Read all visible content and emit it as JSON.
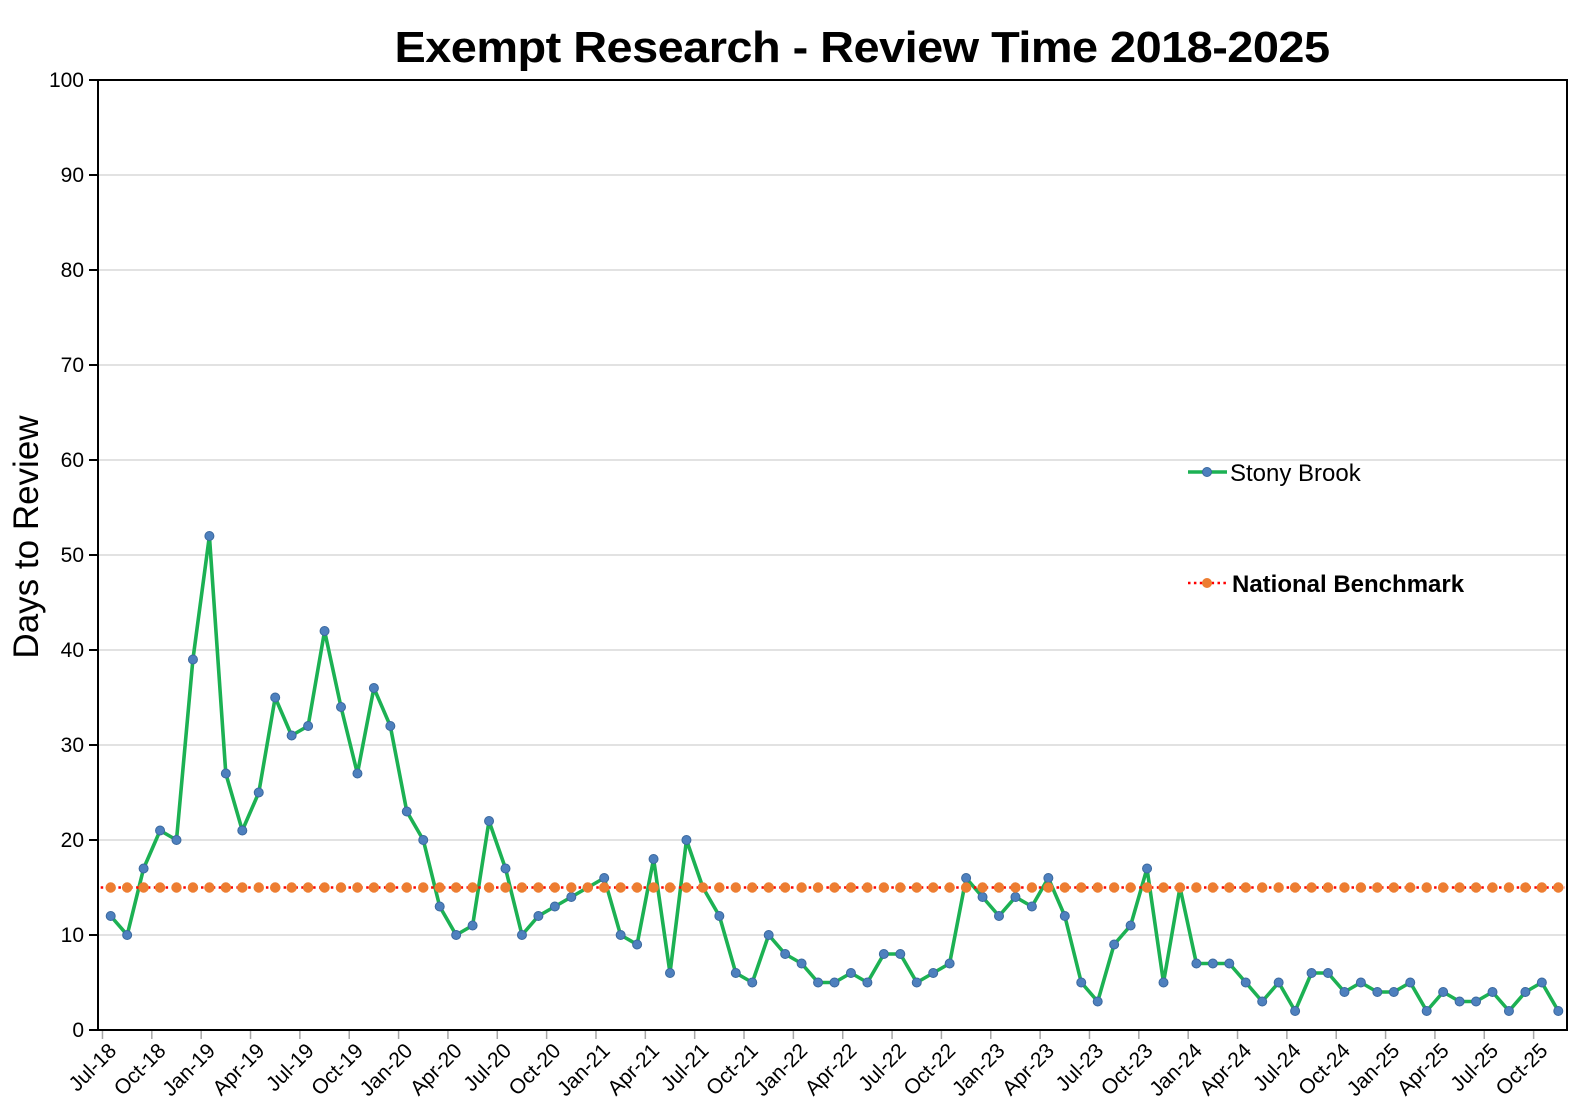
{
  "title": "Exempt Research - Review Time 2018-2025",
  "y_axis": {
    "label": "Days to Review",
    "min": 0,
    "max": 100,
    "tick_step": 10,
    "tick_labels": [
      "0",
      "10",
      "20",
      "30",
      "40",
      "50",
      "60",
      "70",
      "80",
      "90",
      "100"
    ]
  },
  "x_axis": {
    "tick_labels": [
      "Jul-18",
      "Oct-18",
      "Jan-19",
      "Apr-19",
      "Jul-19",
      "Oct-19",
      "Jan-20",
      "Apr-20",
      "Jul-20",
      "Oct-20",
      "Jan-21",
      "Apr-21",
      "Jul-21",
      "Oct-21",
      "Jan-22",
      "Apr-22",
      "Jul-22",
      "Oct-22",
      "Jan-23",
      "Apr-23",
      "Jul-23",
      "Oct-23",
      "Jan-24",
      "Apr-24",
      "Jul-24",
      "Oct-24",
      "Jan-25",
      "Apr-25",
      "Jul-25",
      "Oct-25"
    ],
    "label_every_months": 3
  },
  "legend": {
    "items": [
      {
        "label": "Stony Brook",
        "bold": false
      },
      {
        "label": "National Benchmark",
        "bold": true
      }
    ]
  },
  "colors": {
    "stony_brook_line": "#1CB153",
    "stony_brook_marker": "#4E80BE",
    "stony_brook_marker_edge": "#3A689E",
    "benchmark_line": "#FF0000",
    "benchmark_marker": "#ED7D31",
    "gridline": "#D9D9D9",
    "axis": "#000000",
    "x_tick": "#A6A6A6"
  },
  "chart_data": {
    "type": "line",
    "title": "Exempt Research - Review Time 2018-2025",
    "xlabel": "",
    "ylabel": "Days to Review",
    "ylim": [
      0,
      100
    ],
    "grid": "horizontal",
    "legend_position": "right-inside",
    "x": [
      "Jul-18",
      "Aug-18",
      "Sep-18",
      "Oct-18",
      "Nov-18",
      "Dec-18",
      "Jan-19",
      "Feb-19",
      "Mar-19",
      "Apr-19",
      "May-19",
      "Jun-19",
      "Jul-19",
      "Aug-19",
      "Sep-19",
      "Oct-19",
      "Nov-19",
      "Dec-19",
      "Jan-20",
      "Feb-20",
      "Mar-20",
      "Apr-20",
      "May-20",
      "Jun-20",
      "Jul-20",
      "Aug-20",
      "Sep-20",
      "Oct-20",
      "Nov-20",
      "Dec-20",
      "Jan-21",
      "Feb-21",
      "Mar-21",
      "Apr-21",
      "May-21",
      "Jun-21",
      "Jul-21",
      "Aug-21",
      "Sep-21",
      "Oct-21",
      "Nov-21",
      "Dec-21",
      "Jan-22",
      "Feb-22",
      "Mar-22",
      "Apr-22",
      "May-22",
      "Jun-22",
      "Jul-22",
      "Aug-22",
      "Sep-22",
      "Oct-22",
      "Nov-22",
      "Dec-22",
      "Jan-23",
      "Feb-23",
      "Mar-23",
      "Apr-23",
      "May-23",
      "Jun-23",
      "Jul-23",
      "Aug-23",
      "Sep-23",
      "Oct-23",
      "Nov-23",
      "Dec-23",
      "Jan-24",
      "Feb-24",
      "Mar-24",
      "Apr-24",
      "May-24",
      "Jun-24",
      "Jul-24",
      "Aug-24",
      "Sep-24",
      "Oct-24",
      "Nov-24",
      "Dec-24",
      "Jan-25",
      "Feb-25",
      "Mar-25",
      "Apr-25",
      "May-25",
      "Jun-25",
      "Jul-25",
      "Aug-25",
      "Sep-25",
      "Oct-25",
      "Nov-25"
    ],
    "series": [
      {
        "name": "Stony Brook",
        "style": "solid",
        "values": [
          12,
          10,
          17,
          21,
          20,
          39,
          52,
          27,
          21,
          25,
          35,
          31,
          32,
          42,
          34,
          27,
          36,
          32,
          23,
          20,
          13,
          10,
          11,
          22,
          17,
          10,
          12,
          13,
          14,
          15,
          16,
          10,
          9,
          18,
          6,
          20,
          15,
          12,
          6,
          5,
          10,
          8,
          7,
          5,
          5,
          6,
          5,
          8,
          8,
          5,
          6,
          7,
          16,
          14,
          12,
          14,
          13,
          16,
          12,
          5,
          3,
          9,
          11,
          17,
          5,
          15,
          7,
          7,
          7,
          5,
          3,
          5,
          2,
          6,
          6,
          4,
          5,
          4,
          4,
          5,
          2,
          4,
          3,
          3,
          4,
          2,
          4,
          5,
          2
        ]
      },
      {
        "name": "National Benchmark",
        "style": "dotted",
        "constant_value": 15
      }
    ]
  }
}
